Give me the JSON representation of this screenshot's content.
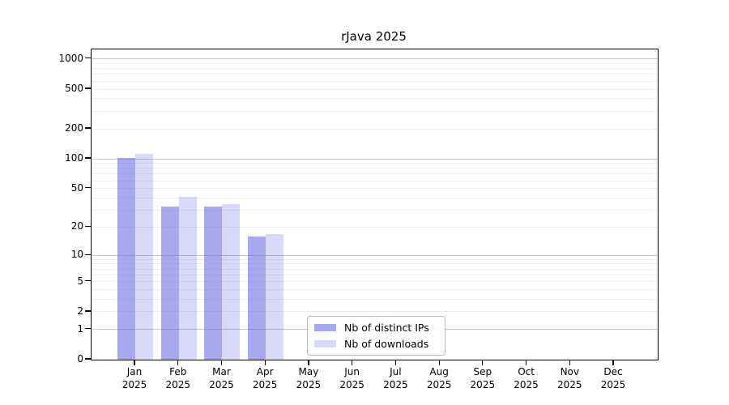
{
  "chart_data": {
    "type": "bar",
    "title": "rJava 2025",
    "categories": [
      "Jan 2025",
      "Feb 2025",
      "Mar 2025",
      "Apr 2025",
      "May 2025",
      "Jun 2025",
      "Jul 2025",
      "Aug 2025",
      "Sep 2025",
      "Oct 2025",
      "Nov 2025",
      "Dec 2025"
    ],
    "series": [
      {
        "name": "Nb of distinct IPs",
        "color": "rgba(110,110,232,0.60)",
        "values": [
          103,
          33,
          33,
          16,
          null,
          null,
          null,
          null,
          null,
          null,
          null,
          null
        ]
      },
      {
        "name": "Nb of downloads",
        "color": "rgba(110,110,232,0.26)",
        "values": [
          113,
          41,
          35,
          17,
          null,
          null,
          null,
          null,
          null,
          null,
          null,
          null
        ]
      }
    ],
    "xlabel": "",
    "ylabel": "",
    "yscale": "log1p",
    "ylim": [
      0,
      1250
    ],
    "yticks": [
      1000,
      500,
      200,
      100,
      50,
      20,
      10,
      5,
      2,
      1,
      0
    ],
    "grid": "on",
    "grid_minor_values": [
      2,
      3,
      4,
      5,
      6,
      7,
      8,
      9,
      20,
      30,
      40,
      50,
      60,
      70,
      80,
      90,
      200,
      300,
      400,
      500,
      600,
      700,
      800,
      900
    ],
    "grid_major_values": [
      1,
      10,
      100,
      1000
    ],
    "legend_position": "lower center",
    "colors": {
      "bar_base": "#6e6ee8",
      "grid_minor": "#ededed",
      "grid_major": "#c6c6c6",
      "axis": "#000000",
      "text": "#000000",
      "legend_border": "#b9b9b9"
    }
  }
}
